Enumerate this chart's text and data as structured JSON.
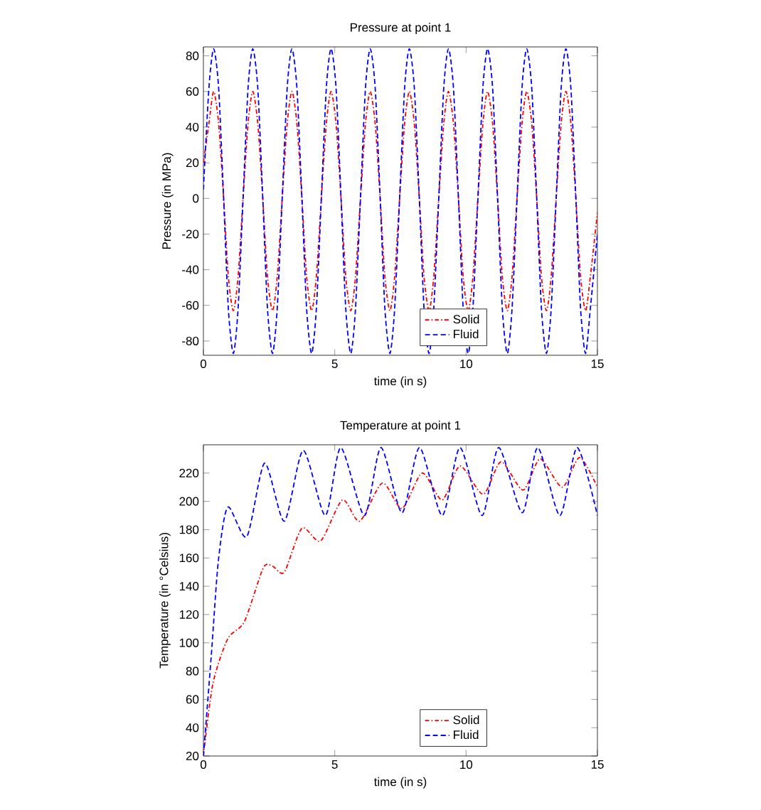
{
  "chart_data": [
    {
      "type": "line",
      "title": "Pressure at point 1",
      "xlabel": "time (in s)",
      "ylabel": "Pressure (in MPa)",
      "x": [
        0,
        0.21,
        0.39,
        0.58,
        0.77,
        0.95,
        1.14,
        1.32,
        1.51,
        1.7,
        1.88,
        2.07,
        2.26,
        2.44,
        2.63,
        2.81,
        3.0,
        3.19,
        3.37,
        3.56,
        3.75,
        3.93,
        4.12,
        4.3,
        4.49,
        4.68,
        4.86,
        5.05,
        5.24,
        5.42,
        5.61,
        5.79,
        5.98,
        6.17,
        6.35,
        6.54,
        6.73,
        6.91,
        7.1,
        7.28,
        7.47,
        7.66,
        7.84,
        8.03,
        8.22,
        8.4,
        8.59,
        8.77,
        8.96,
        9.15,
        9.33,
        9.52,
        9.71,
        9.89,
        10.08,
        10.26,
        10.45,
        10.64,
        10.82,
        11.01,
        11.2,
        11.38,
        11.57,
        11.75,
        11.94,
        12.13,
        12.31,
        12.5,
        12.69,
        12.87,
        13.06,
        13.24,
        13.43,
        13.62,
        13.8,
        13.99,
        14.18,
        14.36,
        14.55,
        14.73,
        15.0
      ],
      "series": [
        {
          "name": "Solid",
          "color": "#ff0000",
          "line_style": "dashdot",
          "values": [
            20,
            42,
            60,
            42,
            0,
            -44,
            -63,
            -44,
            0,
            42,
            60,
            42,
            0,
            -44,
            -63,
            -44,
            0,
            42,
            60,
            42,
            0,
            -44,
            -63,
            -44,
            0,
            42,
            60,
            42,
            0,
            -44,
            -63,
            -44,
            0,
            42,
            60,
            42,
            0,
            -44,
            -63,
            -44,
            0,
            42,
            60,
            42,
            0,
            -44,
            -63,
            -44,
            0,
            42,
            60,
            42,
            0,
            -44,
            -63,
            -44,
            0,
            42,
            60,
            42,
            0,
            -44,
            -63,
            -44,
            0,
            42,
            60,
            42,
            0,
            -44,
            -63,
            -44,
            0,
            42,
            60,
            42,
            0,
            -44,
            -63,
            -44,
            -8
          ]
        },
        {
          "name": "Fluid",
          "color": "#0000ff",
          "line_style": "dashed",
          "values": [
            5,
            62,
            84,
            62,
            0,
            -62,
            -87,
            -62,
            0,
            62,
            84,
            62,
            0,
            -62,
            -87,
            -62,
            0,
            62,
            84,
            62,
            0,
            -62,
            -87,
            -62,
            0,
            62,
            84,
            62,
            0,
            -62,
            -87,
            -62,
            0,
            62,
            84,
            62,
            0,
            -62,
            -87,
            -62,
            0,
            62,
            84,
            62,
            0,
            -62,
            -87,
            -62,
            0,
            62,
            84,
            62,
            0,
            -62,
            -87,
            -62,
            0,
            62,
            84,
            62,
            0,
            -62,
            -87,
            -62,
            0,
            62,
            84,
            62,
            0,
            -62,
            -87,
            -62,
            0,
            62,
            84,
            62,
            0,
            -62,
            -87,
            -62,
            -20
          ]
        }
      ],
      "xlim": [
        0,
        15
      ],
      "xticks": [
        0,
        5,
        10,
        15
      ],
      "ylim": [
        -88,
        85
      ],
      "yticks": [
        -80,
        -60,
        -40,
        -20,
        0,
        20,
        40,
        60,
        80
      ],
      "legend": "bottom right",
      "grid": false
    },
    {
      "type": "line",
      "title": "Temperature at point 1",
      "xlabel": "time (in s)",
      "ylabel": "Temperature (in °Celsius)",
      "series": [
        {
          "name": "Solid",
          "color": "#ff0000",
          "line_style": "dashdot",
          "x": [
            0,
            0.36,
            0.93,
            1.56,
            2.28,
            2.64,
            3.08,
            3.75,
            4.46,
            5.29,
            5.95,
            6.81,
            7.56,
            8.33,
            9.09,
            9.77,
            10.65,
            11.33,
            12.17,
            12.82,
            13.66,
            14.32,
            15
          ],
          "values": [
            20,
            71,
            103,
            115,
            153,
            154,
            150,
            181,
            172,
            201,
            186,
            213,
            195,
            220,
            201,
            225,
            205,
            228,
            208,
            230,
            210,
            231,
            210
          ]
        },
        {
          "name": "Fluid",
          "color": "#0000ff",
          "line_style": "dashed",
          "x": [
            0,
            0.3,
            0.57,
            0.93,
            1.65,
            2.33,
            3.08,
            3.8,
            4.64,
            5.23,
            6.13,
            6.76,
            7.56,
            8.23,
            9.09,
            9.77,
            10.61,
            11.24,
            12.14,
            12.73,
            13.57,
            14.23,
            15
          ],
          "values": [
            20,
            91,
            158,
            196,
            175,
            227,
            186,
            236,
            190,
            238,
            190,
            238,
            192,
            238,
            190,
            238,
            190,
            238,
            192,
            238,
            190,
            238,
            190
          ]
        }
      ],
      "xlim": [
        0,
        15
      ],
      "xticks": [
        0,
        5,
        10,
        15
      ],
      "ylim": [
        20,
        240
      ],
      "yticks": [
        20,
        40,
        60,
        80,
        100,
        120,
        140,
        160,
        180,
        200,
        220
      ],
      "legend": "bottom right",
      "grid": false
    }
  ]
}
